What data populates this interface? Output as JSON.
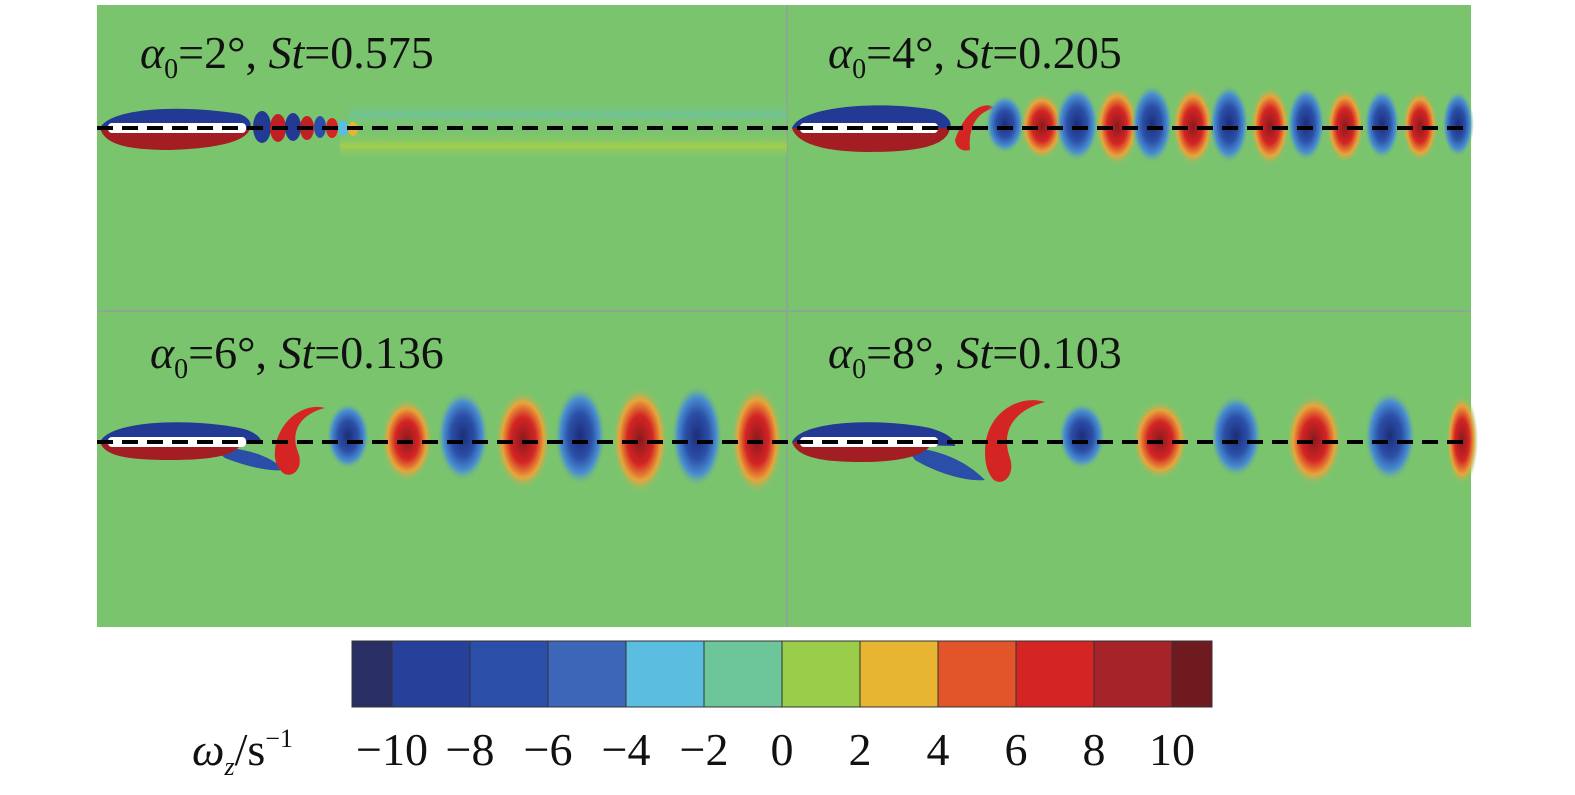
{
  "panels": [
    {
      "alpha_symbol": "α",
      "alpha_sub": "0",
      "alpha_value": "=2°, ",
      "st_symbol": "St",
      "st_value": "=0.575"
    },
    {
      "alpha_symbol": "α",
      "alpha_sub": "0",
      "alpha_value": "=4°, ",
      "st_symbol": "St",
      "st_value": "=0.205"
    },
    {
      "alpha_symbol": "α",
      "alpha_sub": "0",
      "alpha_value": "=6°, ",
      "st_symbol": "St",
      "st_value": "=0.136"
    },
    {
      "alpha_symbol": "α",
      "alpha_sub": "0",
      "alpha_value": "=8°, ",
      "st_symbol": "St",
      "st_value": "=0.103"
    }
  ],
  "colorbar": {
    "symbol": "ω",
    "subscript": "z",
    "unit": "/s",
    "unit_exp": "−1",
    "tick_labels": [
      "−10",
      "−8",
      "−6",
      "−4",
      "−2",
      "0",
      "2",
      "4",
      "6",
      "8",
      "10"
    ],
    "colors": [
      "#2a2f63",
      "#27409a",
      "#2b4fa8",
      "#3d66b8",
      "#5bbde0",
      "#6dc59a",
      "#9acd4a",
      "#e7b531",
      "#e2552a",
      "#d42424",
      "#a62329",
      "#6e1a1f"
    ]
  },
  "colors": {
    "background_field": "#7bc46e",
    "negative_vortex": "#2b4fa8",
    "positive_vortex": "#d42424"
  }
}
